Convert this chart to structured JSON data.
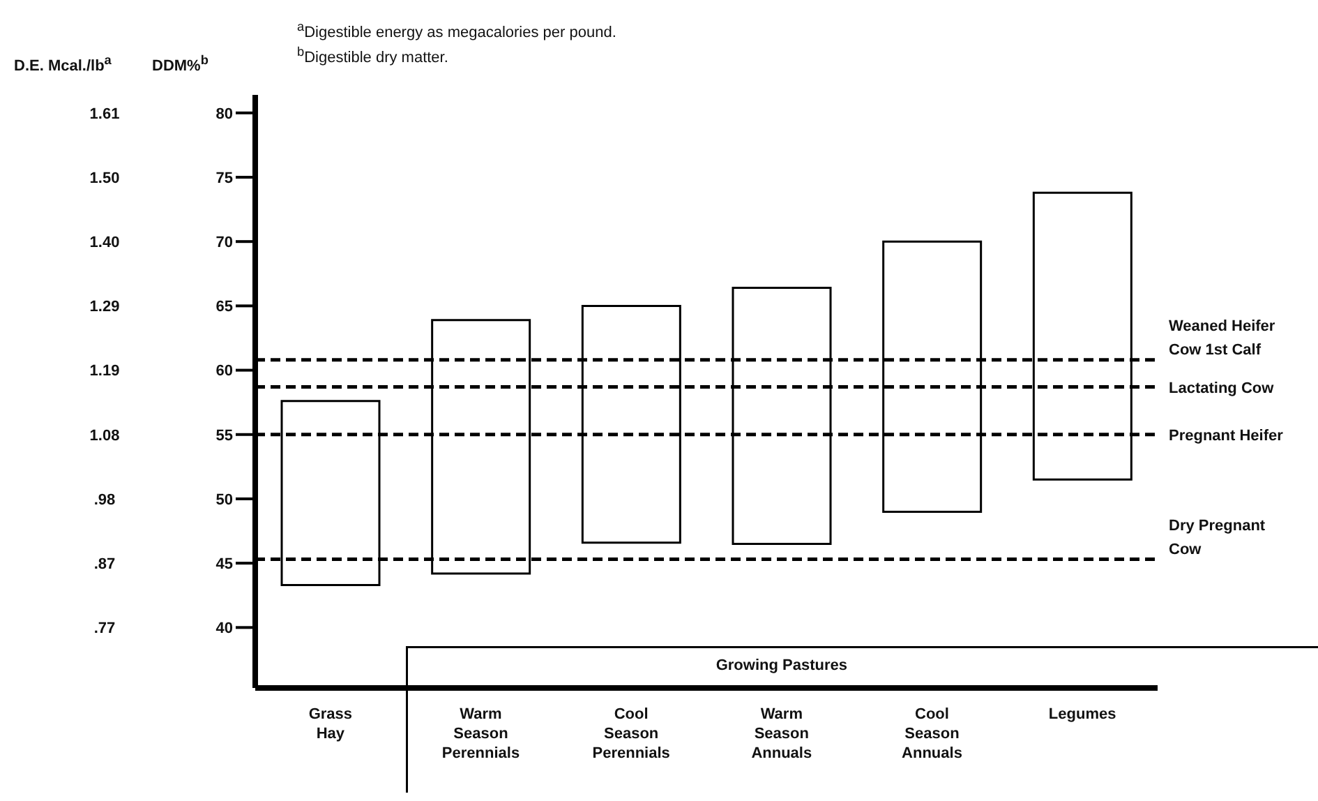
{
  "chart_data": {
    "type": "bar",
    "ylabel": "DDM%$^{b}$",
    "y2label": "D.E. Mcal./lb$^{a}$",
    "annotations": [
      "$^{a}$Digestible energy as megacalories per pound.",
      "$^{b}$Digestible dry matter.",
      "Growing Pastures"
    ],
    "categories": [
      "Grass Hay",
      "Warm Season Perennials",
      "Cool Season Perennials",
      "Warm Season Annuals",
      "Cool Season Annuals",
      "Legumes"
    ],
    "base": [
      43.3,
      44.2,
      46.6,
      46.5,
      49.0,
      51.5
    ],
    "values": [
      14.3,
      19.7,
      18.4,
      19.9,
      21.0,
      22.3
    ],
    "color": "#ffffff",
    "ylim": [
      35.3,
      81.4
    ],
    "yticks": [
      40,
      45,
      50,
      55,
      60,
      65,
      70,
      75,
      80
    ],
    "y2lim": [
      0.6713,
      1.6394
    ],
    "y2ticks": [
      {
        "value": 0.77,
        "label": ".77"
      },
      {
        "value": 0.875,
        "label": ".87"
      },
      {
        "value": 0.98,
        "label": ".98"
      },
      {
        "value": 1.085,
        "label": "1.08"
      },
      1.19,
      {
        "value": 1.295,
        "label": "1.29"
      },
      {
        "value": 1.4,
        "label": "1.40"
      },
      {
        "value": 1.505,
        "label": "1.50"
      },
      1.61
    ],
    "ref_lines": [
      {
        "axis": "y",
        "value": 60.8,
        "label": "Weaned Heifer\nCow 1st Calf",
        "color": "#000000",
        "line_style": "dashed"
      },
      {
        "axis": "y",
        "value": 58.7,
        "label": "Lactating Cow",
        "color": "#000000",
        "line_style": "dashed"
      },
      {
        "axis": "y",
        "value": 55,
        "label": "Pregnant Heifer",
        "color": "#000000",
        "line_style": "dashed"
      },
      {
        "axis": "y",
        "value": 45.3,
        "label": "Dry Pregnant\nCow",
        "color": "#000000",
        "line_style": "dashed"
      }
    ]
  }
}
